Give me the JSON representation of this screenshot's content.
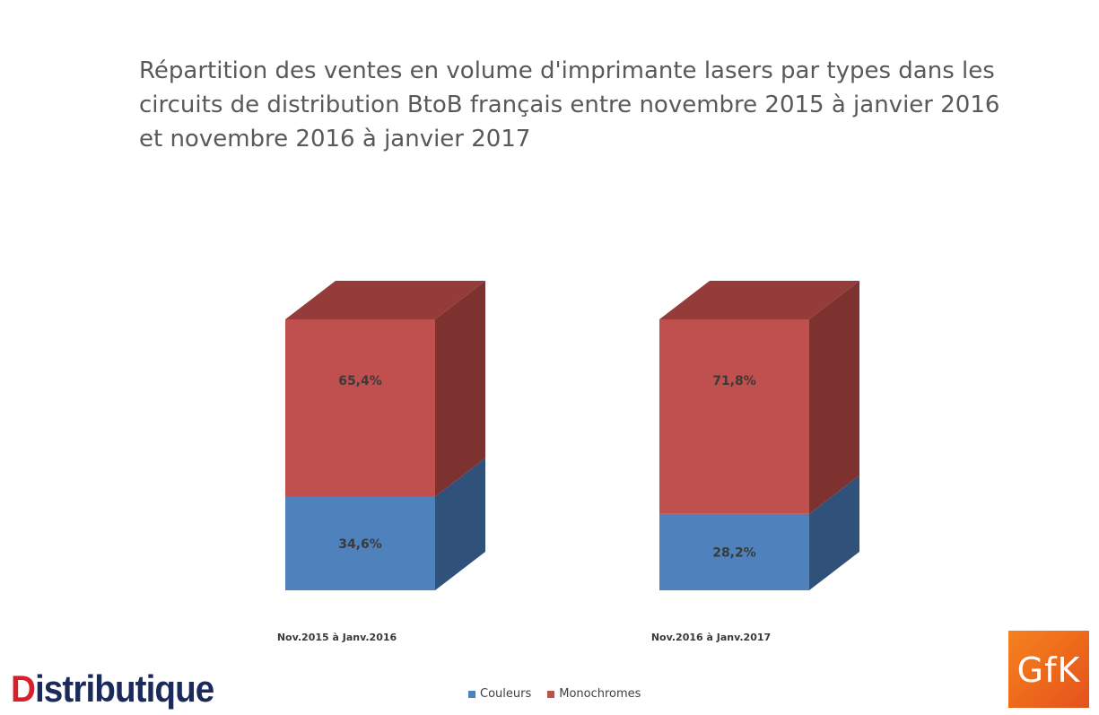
{
  "title": "Répartition des ventes en volume d'imprimante lasers par types dans les circuits de distribution BtoB français entre novembre 2015 à janvier 2016 et novembre 2016 à janvier 2017",
  "chart_data": {
    "type": "bar",
    "stacked": true,
    "three_d": true,
    "categories": [
      "Nov.2015 à Janv.2016",
      "Nov.2016 à Janv.2017"
    ],
    "series": [
      {
        "name": "Couleurs",
        "values": [
          34.6,
          28.2
        ],
        "labels": [
          "34,6%",
          "28,2%"
        ],
        "color": "#4f81bd"
      },
      {
        "name": "Monochromes",
        "values": [
          65.4,
          71.8
        ],
        "labels": [
          "65,4%",
          "71,8%"
        ],
        "color": "#c0504d"
      }
    ],
    "ylim": [
      0,
      100
    ],
    "legend": "bottom",
    "grid": false
  },
  "colors": {
    "couleurs_front": "#4f81bd",
    "couleurs_side": "#30527a",
    "mono_front": "#c0504d",
    "mono_side": "#7e3230",
    "mono_top": "#953b39"
  },
  "logos": {
    "left_first": "D",
    "left_rest": "istributique",
    "right": "GfK"
  }
}
